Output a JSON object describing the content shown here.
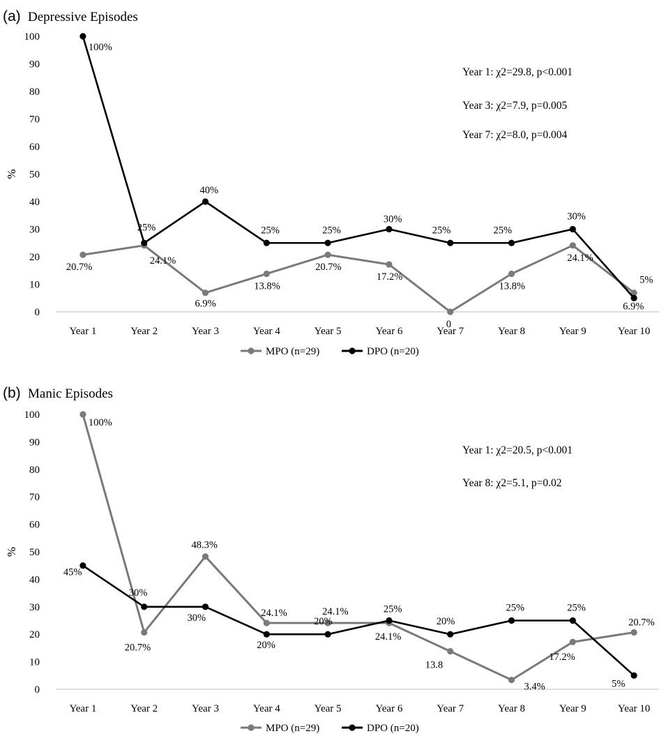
{
  "chart_data": [
    {
      "type": "line",
      "panel": "(a)",
      "title": "Depressive Episodes",
      "ylabel": "%",
      "xlabel": "",
      "ylim": [
        0,
        100
      ],
      "yticks": [
        "0",
        "10",
        "20",
        "30",
        "40",
        "50",
        "60",
        "70",
        "80",
        "90",
        "100"
      ],
      "categories": [
        "Year 1",
        "Year 2",
        "Year 3",
        "Year 4",
        "Year 5",
        "Year 6",
        "Year 7",
        "Year 8",
        "Year 9",
        "Year 10"
      ],
      "series": [
        {
          "name": "MPO (n=29)",
          "color": "#7a7a7a",
          "values": [
            20.7,
            24.1,
            6.9,
            13.8,
            20.7,
            17.2,
            0,
            13.8,
            24.1,
            6.9
          ],
          "labels": [
            "20.7%",
            "24.1%",
            "6.9%",
            "13.8%",
            "20.7%",
            "17.2%",
            "0",
            "13.8%",
            "24.1%",
            "6.9%"
          ]
        },
        {
          "name": "DPO (n=20)",
          "color": "#000000",
          "values": [
            100,
            25,
            40,
            25,
            25,
            30,
            25,
            25,
            30,
            5
          ],
          "labels": [
            "100%",
            "25%",
            "40%",
            "25%",
            "25%",
            "30%",
            "25%",
            "25%",
            "30%",
            "5%"
          ]
        }
      ],
      "annotations": [
        "Year 1: χ2=29.8,  p<0.001",
        "Year 3: χ2=7.9,  p=0.005",
        "Year 7: χ2=8.0,  p=0.004"
      ],
      "legend": "bottom",
      "grid": false
    },
    {
      "type": "line",
      "panel": "(b)",
      "title": "Manic Episodes",
      "ylabel": "%",
      "xlabel": "",
      "ylim": [
        0,
        100
      ],
      "yticks": [
        "0",
        "10",
        "20",
        "30",
        "40",
        "50",
        "60",
        "70",
        "80",
        "90",
        "100"
      ],
      "categories": [
        "Year 1",
        "Year 2",
        "Year 3",
        "Year 4",
        "Year 5",
        "Year 6",
        "Year 7",
        "Year 8",
        "Year 9",
        "Year 10"
      ],
      "series": [
        {
          "name": "MPO (n=29)",
          "color": "#7a7a7a",
          "values": [
            100,
            20.7,
            48.3,
            24.1,
            24.1,
            24.1,
            13.8,
            3.4,
            17.2,
            20.7
          ],
          "labels": [
            "100%",
            "20.7%",
            "48.3%",
            "24.1%",
            "24.1%",
            "24.1%",
            "13.8",
            "3.4%",
            "17.2%",
            "20.7%"
          ]
        },
        {
          "name": "DPO (n=20)",
          "color": "#000000",
          "values": [
            45,
            30,
            30,
            20,
            20,
            25,
            20,
            25,
            25,
            5
          ],
          "labels": [
            "45%",
            "30%",
            "30%",
            "20%",
            "20%",
            "25%",
            "20%",
            "25%",
            "25%",
            "5%"
          ]
        }
      ],
      "annotations": [
        "Year 1: χ2=20.5,  p<0.001",
        "Year 8: χ2=5.1,  p=0.02"
      ],
      "legend": "bottom",
      "grid": false
    }
  ]
}
